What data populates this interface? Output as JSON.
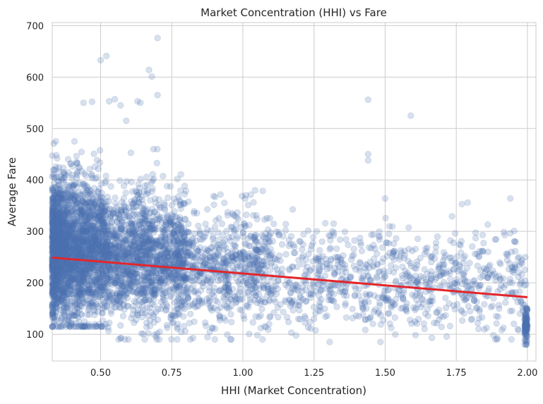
{
  "chart_data": {
    "type": "scatter",
    "title": "Market Concentration (HHI) vs Fare",
    "xlabel": "HHI (Market Concentration)",
    "ylabel": "Average Fare",
    "xlim": [
      0.33,
      2.03
    ],
    "ylim": [
      48,
      706
    ],
    "xticks": [
      0.5,
      0.75,
      1.0,
      1.25,
      1.5,
      1.75,
      2.0
    ],
    "xtick_labels": [
      "0.50",
      "0.75",
      "1.00",
      "1.25",
      "1.50",
      "1.75",
      "2.00"
    ],
    "yticks": [
      100,
      200,
      300,
      400,
      500,
      600,
      700
    ],
    "ytick_labels": [
      "100",
      "200",
      "300",
      "400",
      "500",
      "600",
      "700"
    ],
    "grid": true,
    "point_color": "#4c72b0",
    "point_alpha": 0.22,
    "regression_line": {
      "color": "#e3262b",
      "x": [
        0.33,
        2.0
      ],
      "y": [
        249,
        172
      ]
    },
    "outliers": [
      [
        0.5,
        633
      ],
      [
        0.52,
        641
      ],
      [
        0.67,
        614
      ],
      [
        0.68,
        601
      ],
      [
        0.7,
        676
      ],
      [
        0.7,
        565
      ],
      [
        0.44,
        550
      ],
      [
        0.47,
        552
      ],
      [
        0.55,
        557
      ],
      [
        0.53,
        553
      ],
      [
        0.57,
        545
      ],
      [
        0.63,
        553
      ],
      [
        0.64,
        550
      ],
      [
        0.59,
        515
      ],
      [
        1.44,
        556
      ],
      [
        1.59,
        525
      ],
      [
        1.44,
        450
      ],
      [
        1.44,
        438
      ],
      [
        1.5,
        364
      ],
      [
        1.94,
        364
      ],
      [
        1.79,
        356
      ],
      [
        1.77,
        353
      ]
    ],
    "clusters": [
      {
        "x": [
          0.33,
          0.52
        ],
        "y_center": 262,
        "y_spread": 68,
        "y_range": [
          115,
          475
        ],
        "count": 2600
      },
      {
        "x": [
          0.52,
          0.8
        ],
        "y_center": 248,
        "y_spread": 62,
        "y_range": [
          90,
          460
        ],
        "count": 1500
      },
      {
        "x": [
          0.8,
          1.1
        ],
        "y_center": 228,
        "y_spread": 55,
        "y_range": [
          90,
          420
        ],
        "count": 650
      },
      {
        "x": [
          1.1,
          1.6
        ],
        "y_center": 208,
        "y_spread": 48,
        "y_range": [
          85,
          350
        ],
        "count": 480
      },
      {
        "x": [
          1.6,
          1.97
        ],
        "y_center": 195,
        "y_spread": 48,
        "y_range": [
          90,
          340
        ],
        "count": 330
      },
      {
        "x": [
          1.99,
          2.0
        ],
        "y_center": 118,
        "y_spread": 16,
        "y_range": [
          80,
          150
        ],
        "count": 110
      },
      {
        "x": [
          1.97,
          2.0
        ],
        "y_center": 195,
        "y_spread": 35,
        "y_range": [
          140,
          250
        ],
        "count": 25
      }
    ]
  }
}
